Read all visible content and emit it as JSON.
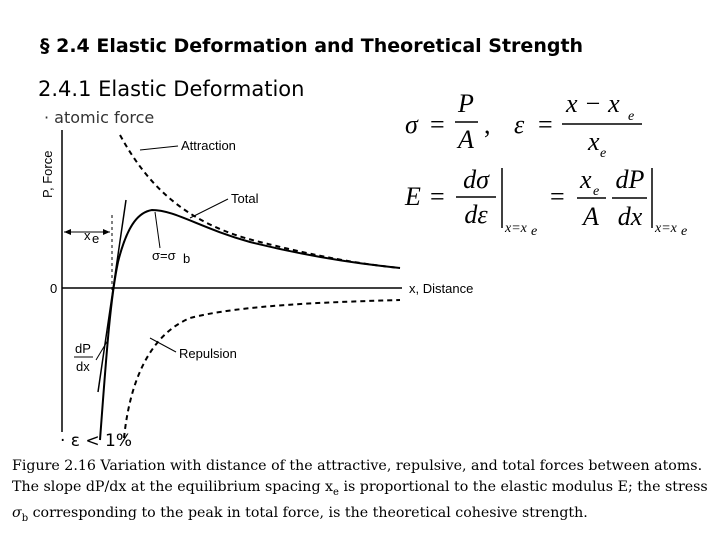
{
  "header": {
    "title": "§ 2.4 Elastic Deformation and Theoretical Strength",
    "subtitle": "2.4.1 Elastic Deformation"
  },
  "bullets": [
    "· atomic force",
    "· ε < 1%"
  ],
  "equations": {
    "line_1": [
      "σ",
      "=",
      "P",
      "A",
      ",",
      "ε",
      "=",
      "x − x",
      "e",
      "x",
      "e"
    ],
    "line_2": [
      "E",
      "=",
      "dσ",
      "dε",
      "x=x",
      "e",
      "=",
      "x",
      "e",
      "A",
      "dP",
      "dx",
      "x=x",
      "e"
    ]
  },
  "figure": {
    "y_axis_label": "P, Force",
    "x_axis_label": "x, Distance",
    "origin_label": "0",
    "labels": {
      "attraction": "Attraction",
      "total": "Total",
      "repulsion": "Repulsion",
      "equilibrium": "x",
      "equilibrium_sub": "e",
      "peak": "σ=σ",
      "peak_sub": "b",
      "slope_numerator": "dP",
      "slope_denominator": "dx"
    }
  },
  "caption": [
    "Figure 2.16 Variation with distance of the attractive, repulsive, and total forces between atoms. The slope dP/dx at the equilibrium spacing x",
    "e",
    " is proportional to the elastic modulus E; the stress ",
    "σ",
    "b",
    " corresponding to the peak in total force, is the theoretical cohesive strength."
  ]
}
